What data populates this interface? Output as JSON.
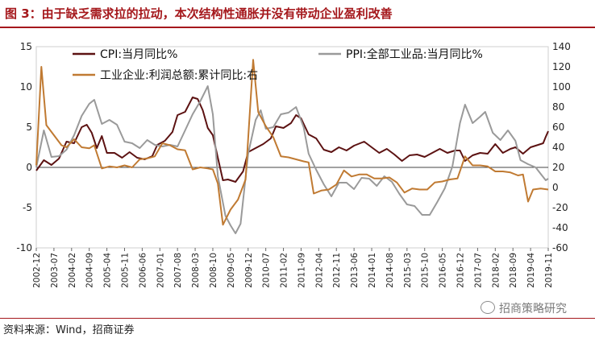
{
  "header": {
    "title": "图 3：由于缺乏需求拉的拉动，本次结构性通胀并没有带动企业盈利改善"
  },
  "footer": {
    "source": "资料来源：Wind，招商证券",
    "watermark": "招商策略研究"
  },
  "colors": {
    "cpi": "#5c1212",
    "ppi": "#9a9a9a",
    "profit": "#c07a32",
    "accent": "#a5181c"
  },
  "chart_data": {
    "type": "line",
    "title": "",
    "xlabel": "",
    "ylabel": "",
    "grid": false,
    "legend_position": "top",
    "x_start": "2002-12",
    "x_end": "2019-11",
    "x_tick_labels": [
      "2002-12",
      "2003-07",
      "2004-02",
      "2004-09",
      "2005-04",
      "2005-11",
      "2006-06",
      "2007-01",
      "2007-08",
      "2008-03",
      "2008-10",
      "2009-05",
      "2009-12",
      "2010-07",
      "2011-02",
      "2011-09",
      "2012-04",
      "2012-11",
      "2013-06",
      "2014-01",
      "2014-08",
      "2015-03",
      "2015-10",
      "2016-05",
      "2016-12",
      "2017-07",
      "2018-02",
      "2018-09",
      "2019-04",
      "2019-11"
    ],
    "y_left": {
      "min": -10,
      "max": 15,
      "ticks": [
        -10,
        -5,
        0,
        5,
        10,
        15
      ]
    },
    "y_right": {
      "min": -60,
      "max": 140,
      "ticks": [
        -60,
        -40,
        -20,
        0,
        20,
        40,
        60,
        80,
        100,
        120,
        140
      ]
    },
    "series": [
      {
        "name": "CPI:当月同比%",
        "axis": "left",
        "color": "#5c1212",
        "width": 2,
        "points": [
          [
            "2002-12",
            -0.4
          ],
          [
            "2003-03",
            0.9
          ],
          [
            "2003-06",
            0.3
          ],
          [
            "2003-09",
            1.1
          ],
          [
            "2003-12",
            3.2
          ],
          [
            "2004-03",
            3.0
          ],
          [
            "2004-06",
            5.0
          ],
          [
            "2004-08",
            5.3
          ],
          [
            "2004-10",
            4.3
          ],
          [
            "2004-12",
            2.4
          ],
          [
            "2005-02",
            3.9
          ],
          [
            "2005-04",
            1.8
          ],
          [
            "2005-07",
            1.8
          ],
          [
            "2005-10",
            1.2
          ],
          [
            "2006-01",
            1.9
          ],
          [
            "2006-04",
            1.2
          ],
          [
            "2006-07",
            1.0
          ],
          [
            "2006-10",
            1.4
          ],
          [
            "2006-12",
            2.8
          ],
          [
            "2007-03",
            3.3
          ],
          [
            "2007-06",
            4.4
          ],
          [
            "2007-08",
            6.5
          ],
          [
            "2007-11",
            6.9
          ],
          [
            "2008-02",
            8.7
          ],
          [
            "2008-04",
            8.5
          ],
          [
            "2008-06",
            7.1
          ],
          [
            "2008-08",
            4.9
          ],
          [
            "2008-10",
            4.0
          ],
          [
            "2008-12",
            1.2
          ],
          [
            "2009-02",
            -1.6
          ],
          [
            "2009-04",
            -1.5
          ],
          [
            "2009-07",
            -1.8
          ],
          [
            "2009-10",
            -0.5
          ],
          [
            "2009-12",
            1.9
          ],
          [
            "2010-03",
            2.4
          ],
          [
            "2010-06",
            2.9
          ],
          [
            "2010-09",
            3.6
          ],
          [
            "2010-11",
            5.1
          ],
          [
            "2011-02",
            4.9
          ],
          [
            "2011-05",
            5.5
          ],
          [
            "2011-07",
            6.5
          ],
          [
            "2011-09",
            6.1
          ],
          [
            "2011-12",
            4.1
          ],
          [
            "2012-03",
            3.6
          ],
          [
            "2012-06",
            2.2
          ],
          [
            "2012-09",
            1.9
          ],
          [
            "2012-12",
            2.5
          ],
          [
            "2013-03",
            2.1
          ],
          [
            "2013-06",
            2.7
          ],
          [
            "2013-10",
            3.2
          ],
          [
            "2014-01",
            2.5
          ],
          [
            "2014-04",
            1.8
          ],
          [
            "2014-07",
            2.3
          ],
          [
            "2014-10",
            1.6
          ],
          [
            "2015-01",
            0.8
          ],
          [
            "2015-04",
            1.5
          ],
          [
            "2015-07",
            1.6
          ],
          [
            "2015-10",
            1.3
          ],
          [
            "2016-01",
            1.8
          ],
          [
            "2016-04",
            2.3
          ],
          [
            "2016-07",
            1.8
          ],
          [
            "2016-10",
            2.1
          ],
          [
            "2016-12",
            2.1
          ],
          [
            "2017-02",
            0.8
          ],
          [
            "2017-05",
            1.5
          ],
          [
            "2017-08",
            1.8
          ],
          [
            "2017-11",
            1.7
          ],
          [
            "2018-02",
            2.9
          ],
          [
            "2018-05",
            1.8
          ],
          [
            "2018-08",
            2.3
          ],
          [
            "2018-10",
            2.5
          ],
          [
            "2019-01",
            1.7
          ],
          [
            "2019-04",
            2.5
          ],
          [
            "2019-07",
            2.8
          ],
          [
            "2019-09",
            3.0
          ],
          [
            "2019-10",
            3.8
          ],
          [
            "2019-11",
            4.5
          ]
        ]
      },
      {
        "name": "PPI:全部工业品:当月同比%",
        "axis": "left",
        "color": "#9a9a9a",
        "width": 2,
        "points": [
          [
            "2002-12",
            0.0
          ],
          [
            "2003-03",
            4.6
          ],
          [
            "2003-06",
            1.3
          ],
          [
            "2003-09",
            1.4
          ],
          [
            "2003-12",
            2.2
          ],
          [
            "2004-03",
            4.0
          ],
          [
            "2004-06",
            6.4
          ],
          [
            "2004-09",
            7.9
          ],
          [
            "2004-11",
            8.4
          ],
          [
            "2005-02",
            5.4
          ],
          [
            "2005-05",
            5.9
          ],
          [
            "2005-08",
            5.3
          ],
          [
            "2005-11",
            3.2
          ],
          [
            "2006-02",
            3.0
          ],
          [
            "2006-05",
            2.4
          ],
          [
            "2006-08",
            3.4
          ],
          [
            "2006-11",
            2.8
          ],
          [
            "2007-02",
            2.6
          ],
          [
            "2007-05",
            2.8
          ],
          [
            "2007-08",
            2.6
          ],
          [
            "2007-11",
            4.6
          ],
          [
            "2008-02",
            6.6
          ],
          [
            "2008-05",
            8.2
          ],
          [
            "2008-08",
            10.1
          ],
          [
            "2008-10",
            6.6
          ],
          [
            "2008-12",
            -1.1
          ],
          [
            "2009-03",
            -6.0
          ],
          [
            "2009-05",
            -7.2
          ],
          [
            "2009-07",
            -8.2
          ],
          [
            "2009-09",
            -7.0
          ],
          [
            "2009-12",
            1.7
          ],
          [
            "2010-03",
            5.9
          ],
          [
            "2010-05",
            7.1
          ],
          [
            "2010-07",
            4.8
          ],
          [
            "2010-10",
            5.0
          ],
          [
            "2011-01",
            6.6
          ],
          [
            "2011-04",
            6.8
          ],
          [
            "2011-07",
            7.5
          ],
          [
            "2011-10",
            5.0
          ],
          [
            "2011-12",
            1.7
          ],
          [
            "2012-03",
            -0.3
          ],
          [
            "2012-06",
            -2.1
          ],
          [
            "2012-09",
            -3.6
          ],
          [
            "2012-12",
            -1.9
          ],
          [
            "2013-03",
            -1.9
          ],
          [
            "2013-06",
            -2.7
          ],
          [
            "2013-09",
            -1.3
          ],
          [
            "2013-12",
            -1.4
          ],
          [
            "2014-03",
            -2.3
          ],
          [
            "2014-06",
            -1.1
          ],
          [
            "2014-09",
            -1.8
          ],
          [
            "2014-12",
            -3.3
          ],
          [
            "2015-03",
            -4.6
          ],
          [
            "2015-06",
            -4.8
          ],
          [
            "2015-09",
            -5.9
          ],
          [
            "2015-12",
            -5.9
          ],
          [
            "2016-03",
            -4.3
          ],
          [
            "2016-06",
            -2.6
          ],
          [
            "2016-09",
            0.1
          ],
          [
            "2016-12",
            5.5
          ],
          [
            "2017-02",
            7.8
          ],
          [
            "2017-05",
            5.5
          ],
          [
            "2017-08",
            6.3
          ],
          [
            "2017-10",
            6.9
          ],
          [
            "2018-01",
            4.3
          ],
          [
            "2018-04",
            3.4
          ],
          [
            "2018-07",
            4.6
          ],
          [
            "2018-10",
            3.3
          ],
          [
            "2018-12",
            0.9
          ],
          [
            "2019-03",
            0.4
          ],
          [
            "2019-06",
            0.0
          ],
          [
            "2019-08",
            -0.8
          ],
          [
            "2019-10",
            -1.6
          ],
          [
            "2019-11",
            -1.4
          ]
        ]
      },
      {
        "name": "工业企业:利润总额:累计同比:右",
        "axis": "right",
        "color": "#c07a32",
        "width": 2,
        "points": [
          [
            "2002-12",
            22
          ],
          [
            "2003-02",
            120
          ],
          [
            "2003-04",
            62
          ],
          [
            "2003-07",
            52
          ],
          [
            "2003-10",
            42
          ],
          [
            "2003-12",
            40
          ],
          [
            "2004-03",
            48
          ],
          [
            "2004-06",
            40
          ],
          [
            "2004-09",
            39
          ],
          [
            "2004-11",
            42
          ],
          [
            "2005-02",
            19
          ],
          [
            "2005-05",
            21
          ],
          [
            "2005-08",
            20
          ],
          [
            "2005-11",
            22
          ],
          [
            "2006-02",
            20
          ],
          [
            "2006-05",
            28
          ],
          [
            "2006-08",
            29
          ],
          [
            "2006-11",
            31
          ],
          [
            "2007-02",
            44
          ],
          [
            "2007-05",
            42
          ],
          [
            "2007-08",
            38
          ],
          [
            "2007-11",
            37
          ],
          [
            "2008-02",
            18
          ],
          [
            "2008-05",
            20
          ],
          [
            "2008-08",
            19
          ],
          [
            "2008-10",
            18
          ],
          [
            "2008-12",
            4
          ],
          [
            "2009-02",
            -37
          ],
          [
            "2009-05",
            -22
          ],
          [
            "2009-08",
            -12
          ],
          [
            "2009-11",
            8
          ],
          [
            "2010-02",
            127
          ],
          [
            "2010-04",
            75
          ],
          [
            "2010-07",
            61
          ],
          [
            "2010-10",
            50
          ],
          [
            "2011-01",
            31
          ],
          [
            "2011-04",
            30
          ],
          [
            "2011-07",
            28
          ],
          [
            "2011-10",
            26
          ],
          [
            "2011-12",
            25
          ],
          [
            "2012-02",
            -6
          ],
          [
            "2012-05",
            -3
          ],
          [
            "2012-08",
            -2
          ],
          [
            "2012-11",
            3
          ],
          [
            "2013-02",
            17
          ],
          [
            "2013-05",
            11
          ],
          [
            "2013-08",
            13
          ],
          [
            "2013-11",
            13
          ],
          [
            "2014-02",
            9
          ],
          [
            "2014-05",
            9
          ],
          [
            "2014-08",
            10
          ],
          [
            "2014-11",
            5
          ],
          [
            "2015-02",
            -5
          ],
          [
            "2015-05",
            -1
          ],
          [
            "2015-08",
            -2
          ],
          [
            "2015-11",
            -2
          ],
          [
            "2016-02",
            5
          ],
          [
            "2016-05",
            6
          ],
          [
            "2016-08",
            8
          ],
          [
            "2016-11",
            9
          ],
          [
            "2017-02",
            31
          ],
          [
            "2017-05",
            22
          ],
          [
            "2017-08",
            22
          ],
          [
            "2017-11",
            21
          ],
          [
            "2018-02",
            16
          ],
          [
            "2018-05",
            16
          ],
          [
            "2018-08",
            15
          ],
          [
            "2018-11",
            12
          ],
          [
            "2019-01",
            13
          ],
          [
            "2019-03",
            -14
          ],
          [
            "2019-05",
            -2
          ],
          [
            "2019-08",
            -1
          ],
          [
            "2019-11",
            -2
          ]
        ]
      }
    ]
  }
}
